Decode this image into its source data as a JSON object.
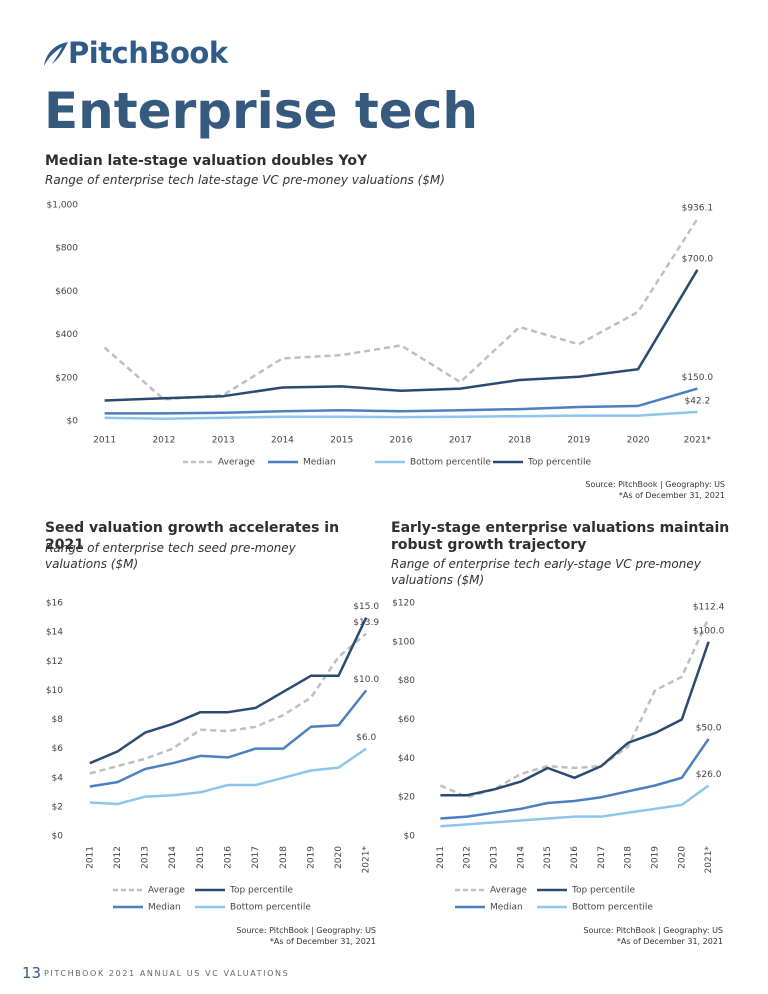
{
  "header": {
    "logo": "PitchBook",
    "title": "Enterprise tech"
  },
  "chart_data": [
    {
      "type": "line",
      "title": "Median late-stage valuation doubles YoY",
      "subtitle": "Range of enterprise tech late-stage VC pre-money valuations ($M)",
      "categories": [
        "2011",
        "2012",
        "2013",
        "2014",
        "2015",
        "2016",
        "2017",
        "2018",
        "2019",
        "2020",
        "2021*"
      ],
      "series": [
        {
          "name": "Average",
          "color": "#bfbfbf",
          "dash": true,
          "values": [
            340,
            100,
            120,
            290,
            305,
            350,
            180,
            435,
            355,
            505,
            936.1
          ],
          "value_labels": [
            null,
            null,
            null,
            null,
            null,
            null,
            null,
            null,
            null,
            null,
            "$936.1"
          ]
        },
        {
          "name": "Median",
          "color": "#4b7fc0",
          "dash": false,
          "values": [
            35,
            35,
            38,
            45,
            50,
            45,
            50,
            55,
            65,
            70,
            150
          ],
          "value_labels": [
            null,
            null,
            null,
            null,
            null,
            null,
            null,
            null,
            null,
            null,
            "$150.0"
          ]
        },
        {
          "name": "Bottom percentile",
          "color": "#8ec5ec",
          "dash": false,
          "values": [
            15,
            10,
            15,
            20,
            20,
            18,
            20,
            22,
            25,
            25,
            42.2
          ],
          "value_labels": [
            null,
            null,
            null,
            null,
            null,
            null,
            null,
            null,
            null,
            null,
            "$42.2"
          ]
        },
        {
          "name": "Top percentile",
          "color": "#2b4a70",
          "dash": false,
          "values": [
            95,
            105,
            115,
            155,
            160,
            140,
            150,
            190,
            205,
            240,
            700
          ],
          "value_labels": [
            null,
            null,
            null,
            null,
            null,
            null,
            null,
            null,
            null,
            null,
            "$700.0"
          ]
        }
      ],
      "ylim": [
        0,
        1000
      ],
      "yticks": [
        {
          "value": 0,
          "label": "$0"
        },
        {
          "value": 200,
          "label": "$200"
        },
        {
          "value": 400,
          "label": "$400"
        },
        {
          "value": 600,
          "label": "$600"
        },
        {
          "value": 800,
          "label": "$800"
        },
        {
          "value": 1000,
          "label": "$1,000"
        }
      ],
      "grid": false,
      "source": "Source: PitchBook | Geography: US",
      "note": "*As of December 31, 2021"
    },
    {
      "type": "line",
      "title": "Seed valuation growth accelerates in 2021",
      "subtitle": "Range of enterprise tech seed pre-money valuations ($M)",
      "categories": [
        "2011",
        "2012",
        "2013",
        "2014",
        "2015",
        "2016",
        "2017",
        "2018",
        "2019",
        "2020",
        "2021*"
      ],
      "series": [
        {
          "name": "Average",
          "color": "#bfbfbf",
          "dash": true,
          "values": [
            4.3,
            4.8,
            5.3,
            6.0,
            7.3,
            7.2,
            7.5,
            8.3,
            9.5,
            12.3,
            13.9
          ],
          "value_labels": [
            null,
            null,
            null,
            null,
            null,
            null,
            null,
            null,
            null,
            null,
            "$13.9"
          ]
        },
        {
          "name": "Top percentile",
          "color": "#2b4a70",
          "dash": false,
          "values": [
            5.0,
            5.8,
            7.1,
            7.7,
            8.5,
            8.5,
            8.8,
            9.9,
            11.0,
            11.0,
            15.0
          ],
          "value_labels": [
            null,
            null,
            null,
            null,
            null,
            null,
            null,
            null,
            null,
            null,
            "$15.0"
          ]
        },
        {
          "name": "Median",
          "color": "#4b7fc0",
          "dash": false,
          "values": [
            3.4,
            3.7,
            4.6,
            5.0,
            5.5,
            5.4,
            6.0,
            6.0,
            7.5,
            7.6,
            10.0
          ],
          "value_labels": [
            null,
            null,
            null,
            null,
            null,
            null,
            null,
            null,
            null,
            null,
            "$10.0"
          ]
        },
        {
          "name": "Bottom percentile",
          "color": "#8ec5ec",
          "dash": false,
          "values": [
            2.3,
            2.2,
            2.7,
            2.8,
            3.0,
            3.5,
            3.5,
            4.0,
            4.5,
            4.7,
            6.0
          ],
          "value_labels": [
            null,
            null,
            null,
            null,
            null,
            null,
            null,
            null,
            null,
            null,
            "$6.0"
          ]
        }
      ],
      "ylim": [
        0,
        16
      ],
      "yticks": [
        {
          "value": 0,
          "label": "$0"
        },
        {
          "value": 2,
          "label": "$2"
        },
        {
          "value": 4,
          "label": "$4"
        },
        {
          "value": 6,
          "label": "$6"
        },
        {
          "value": 8,
          "label": "$8"
        },
        {
          "value": 10,
          "label": "$10"
        },
        {
          "value": 12,
          "label": "$12"
        },
        {
          "value": 14,
          "label": "$14"
        },
        {
          "value": 16,
          "label": "$16"
        }
      ],
      "grid": false,
      "source": "Source: PitchBook | Geography: US",
      "note": "*As of December 31, 2021"
    },
    {
      "type": "line",
      "title": "Early-stage enterprise valuations maintain robust growth trajectory",
      "subtitle": "Range of enterprise tech early-stage VC pre-money valuations ($M)",
      "categories": [
        "2011",
        "2012",
        "2013",
        "2014",
        "2015",
        "2016",
        "2017",
        "2018",
        "2019",
        "2020",
        "2021*"
      ],
      "series": [
        {
          "name": "Average",
          "color": "#bfbfbf",
          "dash": true,
          "values": [
            26,
            20,
            24,
            32,
            36,
            35,
            36,
            46,
            75,
            82,
            112.4
          ],
          "value_labels": [
            null,
            null,
            null,
            null,
            null,
            null,
            null,
            null,
            null,
            null,
            "$112.4"
          ]
        },
        {
          "name": "Top percentile",
          "color": "#2b4a70",
          "dash": false,
          "values": [
            21,
            21,
            24,
            28,
            35,
            30,
            36,
            48,
            53,
            60,
            100
          ],
          "value_labels": [
            null,
            null,
            null,
            null,
            null,
            null,
            null,
            null,
            null,
            null,
            "$100.0"
          ]
        },
        {
          "name": "Median",
          "color": "#4b7fc0",
          "dash": false,
          "values": [
            9,
            10,
            12,
            14,
            17,
            18,
            20,
            23,
            26,
            30,
            50
          ],
          "value_labels": [
            null,
            null,
            null,
            null,
            null,
            null,
            null,
            null,
            null,
            null,
            "$50.0"
          ]
        },
        {
          "name": "Bottom percentile",
          "color": "#8ec5ec",
          "dash": false,
          "values": [
            5,
            6,
            7,
            8,
            9,
            10,
            10,
            12,
            14,
            16,
            26
          ],
          "value_labels": [
            null,
            null,
            null,
            null,
            null,
            null,
            null,
            null,
            null,
            null,
            "$26.0"
          ]
        }
      ],
      "ylim": [
        0,
        120
      ],
      "yticks": [
        {
          "value": 0,
          "label": "$0"
        },
        {
          "value": 20,
          "label": "$20"
        },
        {
          "value": 40,
          "label": "$40"
        },
        {
          "value": 60,
          "label": "$60"
        },
        {
          "value": 80,
          "label": "$80"
        },
        {
          "value": 100,
          "label": "$100"
        },
        {
          "value": 120,
          "label": "$120"
        }
      ],
      "grid": false,
      "source": "Source: PitchBook | Geography: US",
      "note": "*As of December 31, 2021"
    }
  ],
  "footer": {
    "page": "13",
    "publication": "PITCHBOOK 2021 ANNUAL US VC VALUATIONS"
  }
}
